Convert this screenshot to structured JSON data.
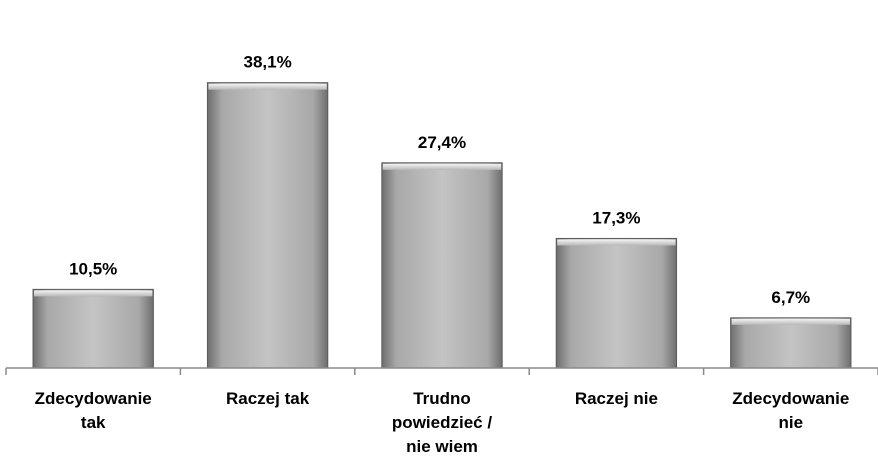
{
  "chart_data": {
    "type": "bar",
    "categories": [
      [
        "Zdecydowanie",
        "tak"
      ],
      [
        "Raczej tak"
      ],
      [
        "Trudno",
        "powiedzieć /",
        "nie wiem"
      ],
      [
        "Raczej nie"
      ],
      [
        "Zdecydowanie",
        "nie"
      ]
    ],
    "values": [
      10.5,
      38.1,
      27.4,
      17.3,
      6.7
    ],
    "value_labels": [
      "10,5%",
      "38,1%",
      "27,4%",
      "17,3%",
      "6,7%"
    ],
    "ylim": [
      0,
      40
    ],
    "grid": false,
    "legend": "none",
    "bar_color": "#b4b4b4"
  }
}
